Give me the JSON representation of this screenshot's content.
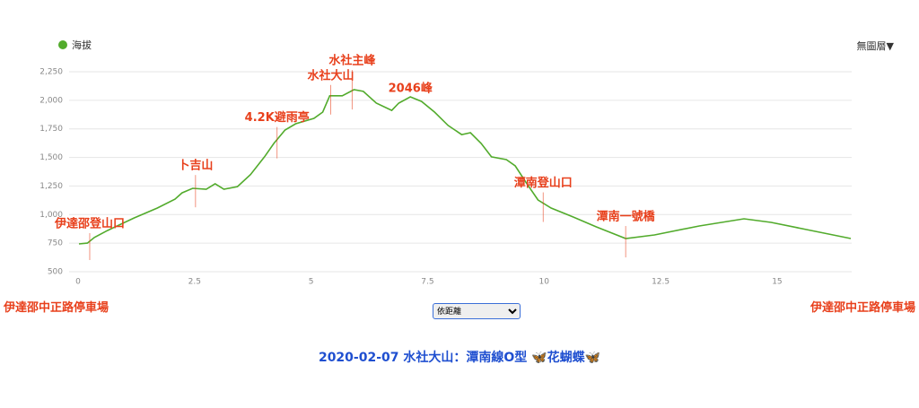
{
  "chart_data": {
    "type": "line",
    "series": [
      {
        "name": "海拔",
        "color": "#52ab2c",
        "values": [
          743,
          750,
          800,
          860,
          970,
          1057,
          1135,
          1190,
          1230,
          1222,
          1270,
          1222,
          1245,
          1350,
          1505,
          1622,
          1740,
          1795,
          1842,
          1897,
          2040,
          2040,
          2093,
          2078,
          1975,
          1912,
          1975,
          2030,
          1990,
          1897,
          1780,
          1700,
          1716,
          1622,
          1505,
          1481,
          1426,
          1270,
          1128,
          1057,
          978,
          892,
          790,
          822,
          900,
          963,
          932,
          869,
          790
        ]
      }
    ],
    "x": [
      0.02,
      0.2,
      0.35,
      0.63,
      1.2,
      1.7,
      2.08,
      2.23,
      2.46,
      2.75,
      2.94,
      3.13,
      3.42,
      3.7,
      4.0,
      4.2,
      4.44,
      4.67,
      5.06,
      5.25,
      5.4,
      5.67,
      5.92,
      6.12,
      6.4,
      6.73,
      6.88,
      7.13,
      7.37,
      7.65,
      7.94,
      8.23,
      8.42,
      8.65,
      8.87,
      9.19,
      9.38,
      9.63,
      9.87,
      10.15,
      10.63,
      11.12,
      11.75,
      12.37,
      13.33,
      14.29,
      14.87,
      15.63,
      16.58
    ],
    "xlim": [
      0,
      16.6
    ],
    "xticks": [
      0,
      2.5,
      5,
      7.5,
      10,
      12.5,
      15
    ],
    "ylim": [
      500,
      2250
    ],
    "yticks": [
      500,
      750,
      {
        "value": 1000,
        "label": "1,000"
      },
      {
        "value": 1250,
        "label": "1,250"
      },
      {
        "value": 1500,
        "label": "1,500"
      },
      {
        "value": 1750,
        "label": "1,750"
      },
      {
        "value": 2000,
        "label": "2,000"
      },
      {
        "value": 2250,
        "label": "2,250"
      }
    ],
    "grid": true,
    "legend_position": "top-left",
    "annotations": [
      {
        "text": "伊達邵登山口",
        "x": 0.25
      },
      {
        "text": "卜吉山",
        "x": 2.52
      },
      {
        "text": "4.2K避雨亭",
        "x": 4.27
      },
      {
        "text": "水社大山",
        "x": 5.42
      },
      {
        "text": "水社主峰",
        "x": 5.88
      },
      {
        "text": "2046峰",
        "x": 7.13
      },
      {
        "text": "潭南登山口",
        "x": 9.98
      },
      {
        "text": "潭南一號橋",
        "x": 11.75
      }
    ]
  },
  "layer_menu": "無圖層",
  "start_label": "伊達邵中正路停車場",
  "end_label": "伊達邵中正路停車場",
  "sort_select": "依距離",
  "page_title": "2020-02-07 水社大山：潭南線O型 🦋花蝴蝶🦋"
}
